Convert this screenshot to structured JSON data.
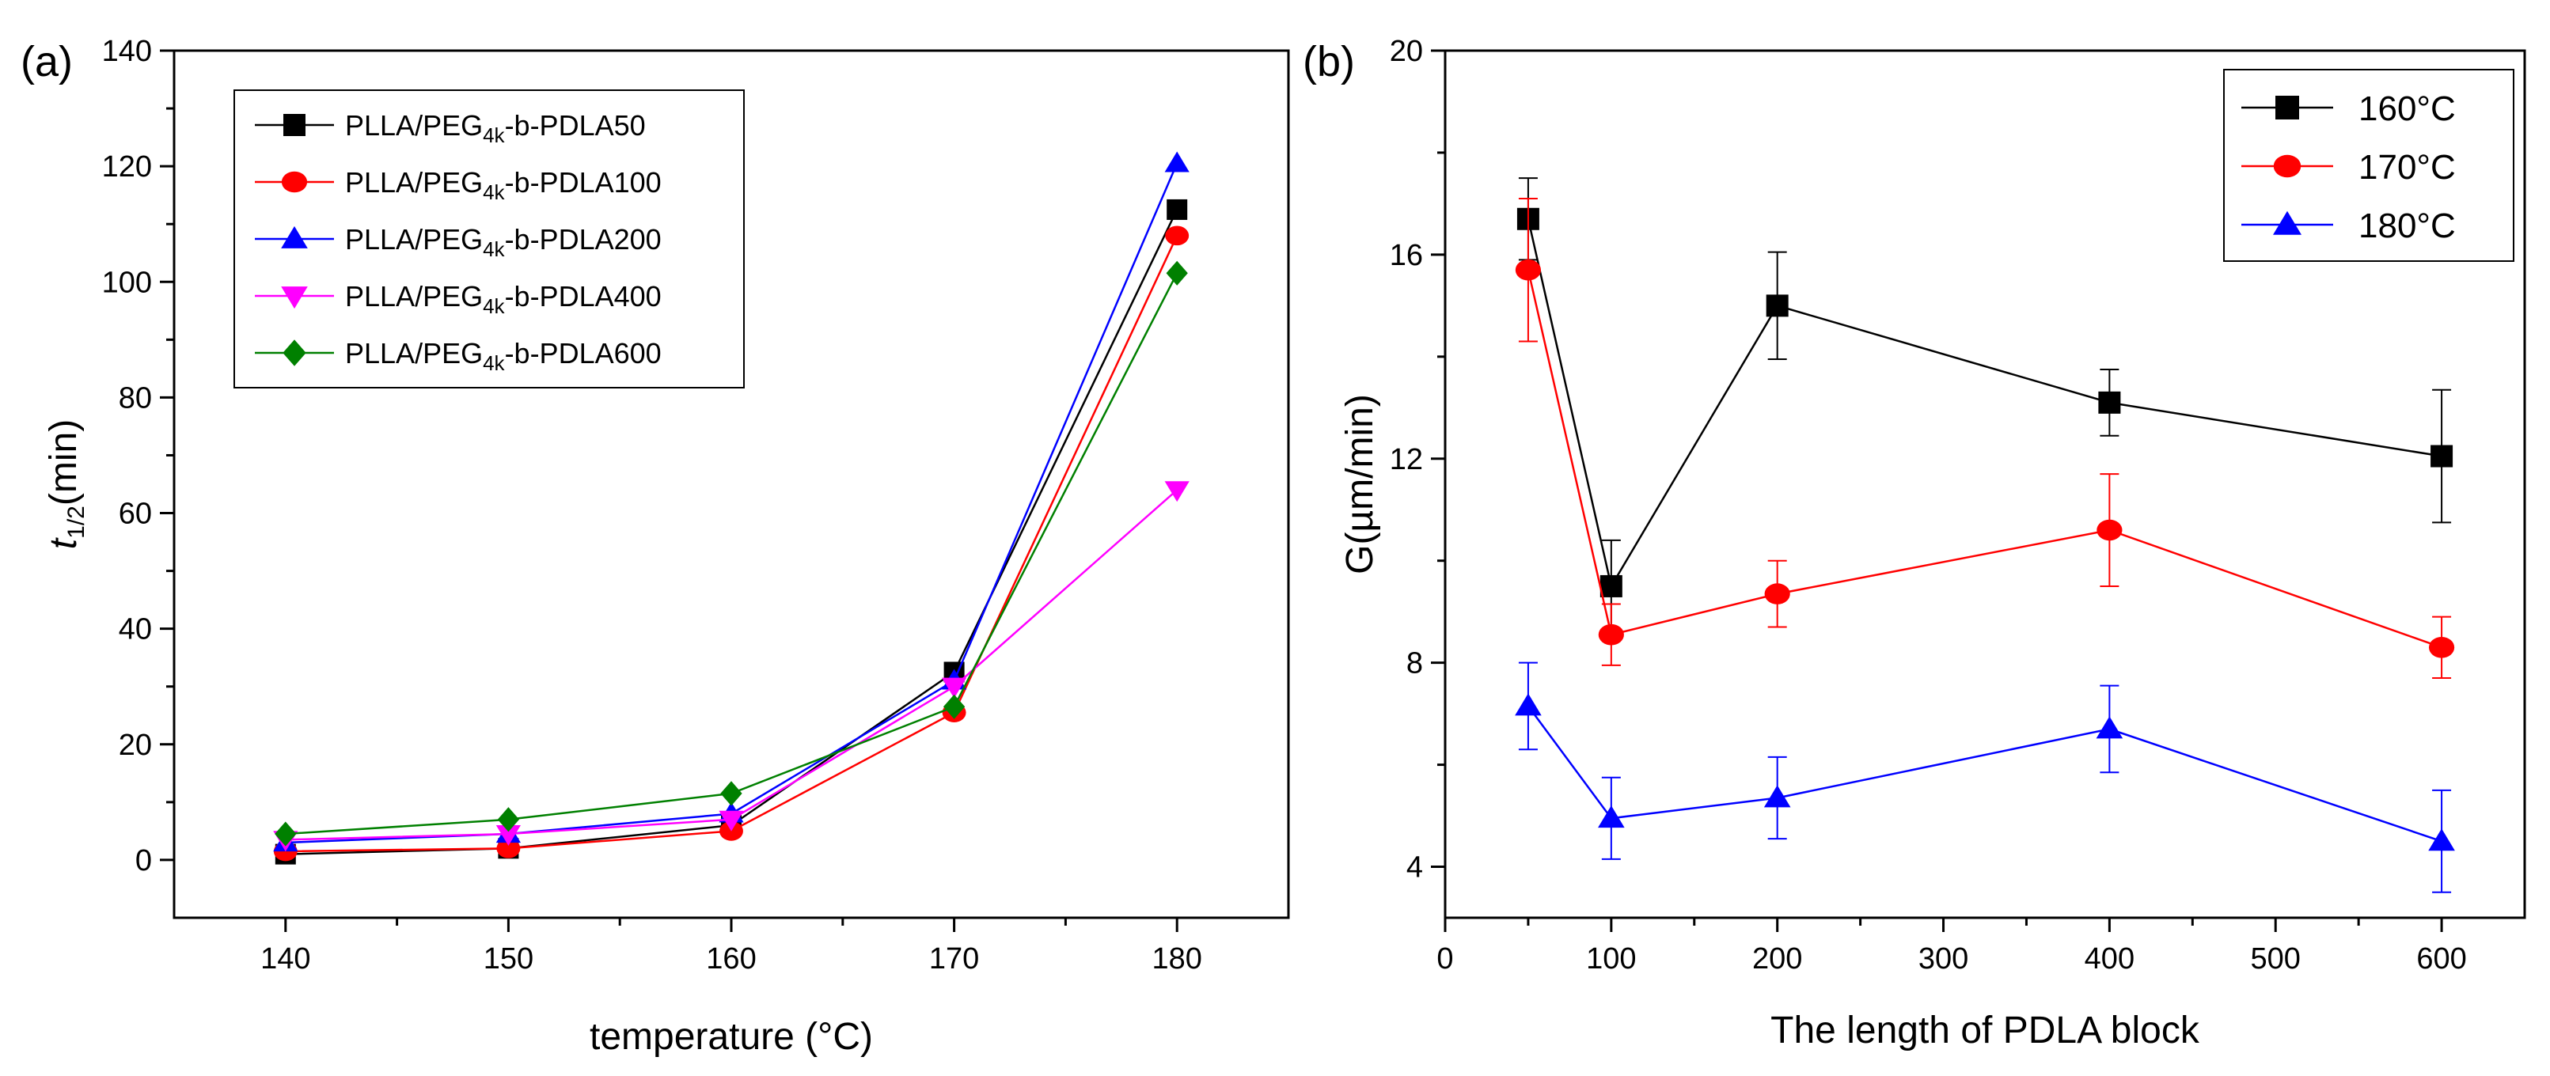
{
  "chart_data": [
    {
      "panel_label": "(a)",
      "type": "line",
      "xlabel": "temperature (°C)",
      "ylabel_main": "t",
      "ylabel_sub": "1/2",
      "ylabel_rest": "(min)",
      "xlim": [
        135,
        185
      ],
      "ylim": [
        -10,
        140
      ],
      "xticks": [
        140,
        150,
        160,
        170,
        180
      ],
      "yticks": [
        0,
        20,
        40,
        60,
        80,
        100,
        120,
        140
      ],
      "legend_position": "top-left",
      "series": [
        {
          "name": "PLLA/PEG4k-b-PDLA50",
          "label_pre": "PLLA/PEG",
          "label_sub": "4k",
          "label_post": "-b-PDLA50",
          "color": "#000000",
          "marker": "square",
          "x": [
            140,
            150,
            160,
            170,
            180
          ],
          "values": [
            1.0,
            2.0,
            6.0,
            32.5,
            112.5
          ]
        },
        {
          "name": "PLLA/PEG4k-b-PDLA100",
          "label_pre": "PLLA/PEG",
          "label_sub": "4k",
          "label_post": "-b-PDLA100",
          "color": "#ff0000",
          "marker": "circle",
          "x": [
            140,
            150,
            160,
            170,
            180
          ],
          "values": [
            1.5,
            2.0,
            5.0,
            25.5,
            108.0
          ]
        },
        {
          "name": "PLLA/PEG4k-b-PDLA200",
          "label_pre": "PLLA/PEG",
          "label_sub": "4k",
          "label_post": "-b-PDLA200",
          "color": "#0000ff",
          "marker": "triangle-up",
          "x": [
            140,
            150,
            160,
            170,
            180
          ],
          "values": [
            3.0,
            4.5,
            8.0,
            31.0,
            120.5
          ]
        },
        {
          "name": "PLLA/PEG4k-b-PDLA400",
          "label_pre": "PLLA/PEG",
          "label_sub": "4k",
          "label_post": "-b-PDLA400",
          "color": "#ff00ff",
          "marker": "triangle-down",
          "x": [
            140,
            150,
            160,
            170,
            180
          ],
          "values": [
            3.5,
            4.5,
            7.0,
            30.0,
            64.0
          ]
        },
        {
          "name": "PLLA/PEG4k-b-PDLA600",
          "label_pre": "PLLA/PEG",
          "label_sub": "4k",
          "label_post": "-b-PDLA600",
          "color": "#008000",
          "marker": "diamond",
          "x": [
            140,
            150,
            160,
            170,
            180
          ],
          "values": [
            4.5,
            7.0,
            11.5,
            26.5,
            101.5
          ]
        }
      ]
    },
    {
      "panel_label": "(b)",
      "type": "line",
      "xlabel": "The length of PDLA block",
      "ylabel": "G(µm/min)",
      "xlim": [
        0,
        650
      ],
      "ylim": [
        3,
        20
      ],
      "xticks": [
        0,
        100,
        200,
        300,
        400,
        500,
        600
      ],
      "yticks": [
        4,
        8,
        12,
        16,
        20
      ],
      "legend_position": "top-right",
      "series": [
        {
          "name": "160°C",
          "color": "#000000",
          "marker": "square",
          "x": [
            50,
            100,
            200,
            400,
            600
          ],
          "values": [
            16.7,
            9.5,
            15.0,
            13.1,
            12.05
          ],
          "errors": [
            0.8,
            0.9,
            1.05,
            0.65,
            1.3
          ]
        },
        {
          "name": "170°C",
          "color": "#ff0000",
          "marker": "circle",
          "x": [
            50,
            100,
            200,
            400,
            600
          ],
          "values": [
            15.7,
            8.55,
            9.35,
            10.6,
            8.3
          ],
          "errors": [
            1.4,
            0.6,
            0.65,
            1.1,
            0.6
          ]
        },
        {
          "name": "180°C",
          "color": "#0000ff",
          "marker": "triangle-up",
          "x": [
            50,
            100,
            200,
            400,
            600
          ],
          "values": [
            7.15,
            4.95,
            5.35,
            6.7,
            4.5
          ],
          "errors": [
            0.85,
            0.8,
            0.8,
            0.85,
            1.0
          ]
        }
      ]
    }
  ]
}
